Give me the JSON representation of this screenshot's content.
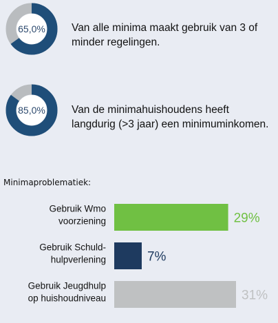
{
  "stats": [
    {
      "value": 65.0,
      "label": "65,0%",
      "text_line1": "Van alle minima maakt gebruik van 3 of",
      "text_line2": "minder regelingen."
    },
    {
      "value": 85.0,
      "label": "85,0%",
      "text_line1": "Van de minimahuishoudens heeft",
      "text_line2": "langdurig (>3 jaar) een minimuminkomen."
    }
  ],
  "colors": {
    "donut_fill": "#1f4e79",
    "donut_rest": "#b9bcbf",
    "green": "#70c043",
    "navy": "#1e3a5f",
    "gray": "#bfc1c2"
  },
  "section_title": "Minimaproblematiek:",
  "chart_data": {
    "type": "bar",
    "orientation": "horizontal",
    "categories": [
      [
        "Gebruik Wmo",
        "voorziening"
      ],
      [
        "Gebruik Schuld-",
        "hulpverlening"
      ],
      [
        "Gebruik Jeugdhulp",
        "op huishoudniveau"
      ]
    ],
    "values": [
      29,
      7,
      31
    ],
    "value_labels": [
      "29%",
      "7%",
      "31%"
    ],
    "bar_colors": [
      "#70c043",
      "#1e3a5f",
      "#bfc1c2"
    ],
    "xlim": [
      0,
      31
    ],
    "grid": false,
    "legend": "none"
  }
}
